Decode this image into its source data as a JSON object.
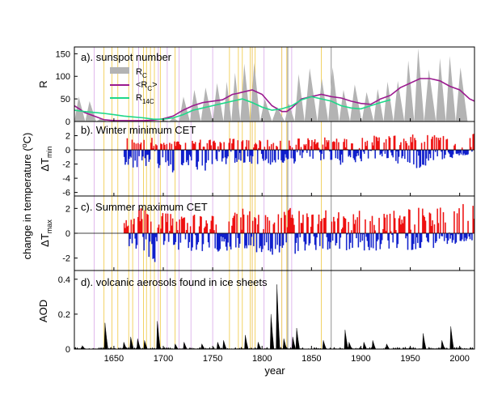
{
  "colors": {
    "rc_fill": "#b3b3b3",
    "rc_mean": "#9b1a8f",
    "r14c": "#1fd88a",
    "warm": "#ee1111",
    "cold": "#1020cc",
    "aod": "#000000",
    "grand_min_line": "#f0c840",
    "grand_max_line": "#d8a8e8",
    "ref_line": "#777777"
  },
  "chart_data": [
    {
      "panel": "a",
      "type": "area",
      "title": "a). sunspot number",
      "ylabel": "R",
      "xlim": [
        1610,
        2015
      ],
      "ylim": [
        0,
        165
      ],
      "yticks": [
        0,
        50,
        100,
        150
      ],
      "xticks": [
        1650,
        1700,
        1750,
        1800,
        1850,
        1900,
        1950,
        2000
      ],
      "xlabel": "",
      "legend": [
        "R",
        "C",
        "<R",
        "C",
        ">",
        "R",
        "14C"
      ],
      "legend_placement": "top-left",
      "series": [
        {
          "name": "Rc",
          "kind": "cycles",
          "year": [
            1610,
            1621,
            1632,
            1643,
            1655,
            1666,
            1676,
            1686,
            1696,
            1706,
            1716,
            1727,
            1738,
            1750,
            1761,
            1769,
            1778,
            1788,
            1798,
            1810,
            1823,
            1833,
            1843,
            1856,
            1867,
            1878,
            1889,
            1901,
            1913,
            1923,
            1933,
            1944,
            1954,
            1964,
            1976,
            1986,
            1996,
            2008
          ],
          "max": [
            55,
            45,
            6,
            0,
            0,
            0,
            0,
            0,
            4,
            8,
            55,
            70,
            75,
            85,
            88,
            108,
            128,
            130,
            50,
            32,
            40,
            105,
            118,
            95,
            120,
            70,
            82,
            65,
            72,
            88,
            90,
            135,
            162,
            115,
            140,
            145,
            120,
            70
          ]
        },
        {
          "name": "<RC>",
          "x": [
            1610,
            1615,
            1620,
            1630,
            1640,
            1650,
            1660,
            1670,
            1680,
            1690,
            1700,
            1710,
            1720,
            1730,
            1740,
            1750,
            1760,
            1770,
            1775,
            1780,
            1790,
            1800,
            1810,
            1820,
            1825,
            1830,
            1840,
            1850,
            1860,
            1870,
            1880,
            1890,
            1900,
            1910,
            1920,
            1930,
            1940,
            1950,
            1960,
            1970,
            1980,
            1990,
            2000,
            2010,
            2015
          ],
          "y": [
            35,
            28,
            20,
            12,
            4,
            2,
            2,
            2,
            2,
            3,
            6,
            12,
            25,
            35,
            42,
            45,
            48,
            60,
            62,
            65,
            70,
            60,
            35,
            22,
            22,
            30,
            50,
            55,
            60,
            55,
            52,
            45,
            40,
            38,
            50,
            58,
            75,
            85,
            95,
            95,
            90,
            78,
            70,
            50,
            45
          ]
        },
        {
          "name": "R14C",
          "x": [
            1610,
            1620,
            1630,
            1640,
            1650,
            1660,
            1670,
            1680,
            1690,
            1700,
            1710,
            1720,
            1730,
            1740,
            1750,
            1760,
            1770,
            1780,
            1790,
            1800,
            1810,
            1820,
            1830,
            1840,
            1850,
            1860,
            1870,
            1880,
            1890,
            1900,
            1910,
            1920,
            1930
          ],
          "y": [
            25,
            22,
            20,
            18,
            15,
            12,
            10,
            8,
            5,
            5,
            8,
            15,
            25,
            30,
            35,
            40,
            45,
            50,
            42,
            32,
            25,
            28,
            35,
            48,
            55,
            50,
            45,
            35,
            30,
            28,
            35,
            42,
            48
          ]
        }
      ]
    },
    {
      "panel": "b",
      "type": "area",
      "title": "b). Winter minimum CET",
      "ylabel": "ΔT",
      "ylabel_sub": "min",
      "xlim": [
        1610,
        2015
      ],
      "ylim": [
        -6.5,
        4
      ],
      "yticks": [
        -6,
        -4,
        -2,
        0,
        2
      ],
      "x_start": 1660,
      "x_end": 2014,
      "anchors_year": [
        1660,
        1670,
        1680,
        1690,
        1700,
        1710,
        1720,
        1730,
        1740,
        1750,
        1760,
        1770,
        1780,
        1790,
        1800,
        1810,
        1820,
        1830,
        1840,
        1850,
        1860,
        1870,
        1880,
        1890,
        1900,
        1910,
        1920,
        1930,
        1940,
        1950,
        1960,
        1970,
        1980,
        1990,
        2000,
        2014
      ],
      "pos_env": [
        1.8,
        1.6,
        1.5,
        1.8,
        1.0,
        1.2,
        1.4,
        1.6,
        1.5,
        1.4,
        1.8,
        1.6,
        1.5,
        1.4,
        1.6,
        1.2,
        1.3,
        1.8,
        1.7,
        1.7,
        1.8,
        1.7,
        1.8,
        1.5,
        2.0,
        2.0,
        2.0,
        2.2,
        2.0,
        2.2,
        2.0,
        2.3,
        2.5,
        2.6,
        2.8,
        2.5
      ],
      "neg_env": [
        -2.0,
        -2.8,
        -2.2,
        -3.6,
        -2.0,
        -3.6,
        -2.0,
        -2.5,
        -4.0,
        -1.8,
        -2.2,
        -1.8,
        -1.8,
        -2.2,
        -2.0,
        -2.2,
        -2.0,
        -2.0,
        -1.6,
        -1.6,
        -1.5,
        -1.5,
        -2.2,
        -1.8,
        -1.8,
        -1.2,
        -1.4,
        -1.2,
        -2.2,
        -2.0,
        -3.0,
        -1.5,
        -1.5,
        -1.2,
        -1.0,
        -0.5
      ]
    },
    {
      "panel": "c",
      "type": "area",
      "title": "c). Summer maximum CET",
      "ylabel": "ΔT",
      "ylabel_sub": "max",
      "xlim": [
        1610,
        2015
      ],
      "ylim": [
        -3,
        3
      ],
      "yticks": [
        -2,
        0,
        2
      ],
      "x_start": 1660,
      "x_end": 2014,
      "anchors_year": [
        1660,
        1670,
        1680,
        1690,
        1700,
        1710,
        1720,
        1730,
        1740,
        1750,
        1760,
        1770,
        1780,
        1790,
        1800,
        1810,
        1820,
        1830,
        1840,
        1850,
        1860,
        1870,
        1880,
        1890,
        1900,
        1910,
        1920,
        1930,
        1940,
        1950,
        1960,
        1970,
        1980,
        1990,
        2000,
        2014
      ],
      "pos_env": [
        1.2,
        1.6,
        2.4,
        1.5,
        2.0,
        1.5,
        1.6,
        1.8,
        1.5,
        1.5,
        1.8,
        1.6,
        2.0,
        1.8,
        1.5,
        1.5,
        1.8,
        2.2,
        2.0,
        1.8,
        2.0,
        2.0,
        1.6,
        1.5,
        2.0,
        1.6,
        1.8,
        1.8,
        2.0,
        2.2,
        2.0,
        2.2,
        2.2,
        2.4,
        2.5,
        2.4
      ],
      "neg_env": [
        -1.4,
        -1.2,
        -1.6,
        -2.6,
        -1.4,
        -1.6,
        -1.2,
        -1.5,
        -1.5,
        -1.6,
        -1.4,
        -1.5,
        -1.5,
        -1.6,
        -1.8,
        -2.0,
        -1.6,
        -1.8,
        -1.4,
        -1.5,
        -1.4,
        -1.4,
        -1.5,
        -1.6,
        -1.4,
        -1.4,
        -1.5,
        -1.4,
        -1.2,
        -1.4,
        -1.4,
        -1.2,
        -1.2,
        -1.0,
        -0.8,
        -0.6
      ]
    },
    {
      "panel": "d",
      "type": "area",
      "title": "d). volcanic aerosols found in ice sheets",
      "ylabel": "AOD",
      "xlabel": "year",
      "xlim": [
        1610,
        2015
      ],
      "ylim": [
        0,
        0.45
      ],
      "yticks": [
        0,
        0.2,
        0.4
      ],
      "ytick_labels": [
        "0",
        "0.2",
        "0.4"
      ],
      "eruptions_year": [
        1618,
        1641,
        1660,
        1667,
        1674,
        1681,
        1694,
        1712,
        1721,
        1739,
        1755,
        1761,
        1783,
        1796,
        1809,
        1815,
        1822,
        1831,
        1835,
        1862,
        1884,
        1888,
        1903,
        1912,
        1926,
        1963,
        1982,
        1991
      ],
      "eruptions_aod": [
        0.02,
        0.15,
        0.04,
        0.07,
        0.06,
        0.05,
        0.16,
        0.03,
        0.04,
        0.03,
        0.04,
        0.05,
        0.08,
        0.04,
        0.2,
        0.37,
        0.06,
        0.07,
        0.12,
        0.05,
        0.11,
        0.04,
        0.04,
        0.05,
        0.03,
        0.09,
        0.05,
        0.13
      ]
    }
  ],
  "shared": {
    "y_title": "change in temperature (",
    "y_title_unit": "C)",
    "y_title_deg": "o",
    "marker_lines": {
      "gold": [
        1640,
        1648,
        1654,
        1665,
        1669,
        1680,
        1683,
        1687,
        1691,
        1697,
        1712,
        1767,
        1776,
        1780,
        1788,
        1790,
        1793,
        1820,
        1825,
        1860
      ],
      "purple": [
        1630,
        1675,
        1695,
        1704,
        1716,
        1728,
        1750,
        1790,
        1802,
        1820,
        1830
      ],
      "grey": [
        1826,
        1870
      ]
    }
  }
}
